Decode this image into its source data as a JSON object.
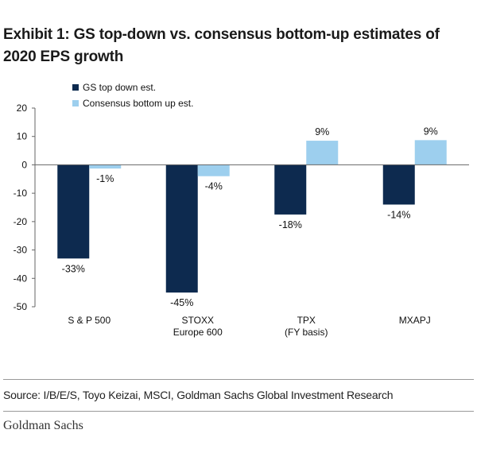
{
  "title": "Exhibit 1: GS top-down vs. consensus bottom-up estimates of 2020 EPS growth",
  "source": "Source: I/B/E/S, Toyo Keizai, MSCI, Goldman Sachs Global Investment Research",
  "brand": "Goldman Sachs",
  "chart_data": {
    "type": "bar",
    "categories": [
      [
        "S & P 500"
      ],
      [
        "STOXX",
        "Europe 600"
      ],
      [
        "TPX",
        "(FY basis)"
      ],
      [
        "MXAPJ"
      ]
    ],
    "series": [
      {
        "name": "GS top down est.",
        "values": [
          -33,
          -45,
          -17.5,
          -14
        ],
        "labels": [
          "-33%",
          "-45%",
          "-18%",
          "-14%"
        ],
        "color": "#0d2a4f"
      },
      {
        "name": "Consensus bottom up est.",
        "values": [
          -1.3,
          -4,
          8.5,
          8.7
        ],
        "labels": [
          "-1%",
          "-4%",
          "9%",
          "9%"
        ],
        "color": "#9dcfee"
      }
    ],
    "yticks": [
      20,
      10,
      0,
      -10,
      -20,
      -30,
      -40,
      -50
    ],
    "ytick_labels": [
      "20",
      "10",
      "0",
      "-10",
      "-20",
      "-30",
      "-40",
      "-50"
    ],
    "ylim": [
      -50,
      20
    ],
    "grid": false,
    "legend_position": "top-left"
  }
}
